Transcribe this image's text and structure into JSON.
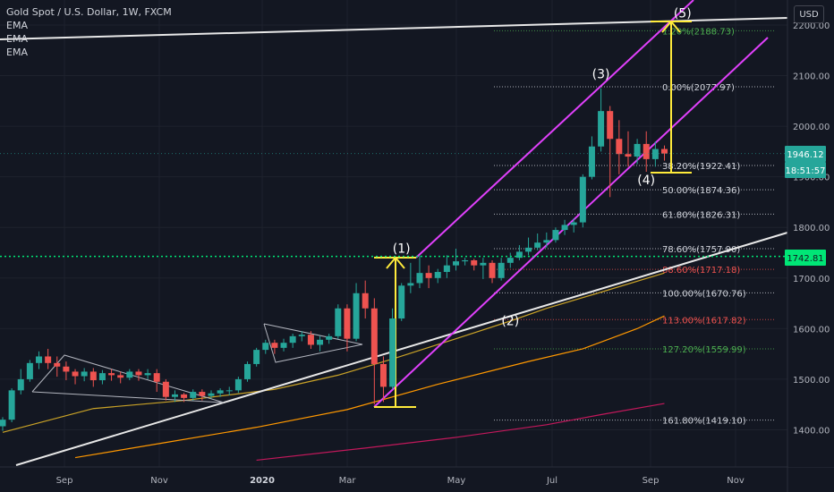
{
  "legend": {
    "title": "Gold Spot / U.S. Dollar, 1W, FXCM",
    "ema_labels": [
      "EMA",
      "EMA",
      "EMA"
    ]
  },
  "currency_button": "USD",
  "price_axis": {
    "ticks": [
      "2200.00",
      "2100.00",
      "2000.00",
      "1800.00",
      "1700.00",
      "1600.00",
      "1500.00",
      "1400.00"
    ],
    "tick_values": [
      2200,
      2100,
      2000,
      1800,
      1700,
      1600,
      1500,
      1400
    ],
    "current_price_label": "1946.12",
    "countdown_label": "18:51:57",
    "line_price_label": "1742.81",
    "partial_tick": "1900.00"
  },
  "time_axis": {
    "labels": [
      "Sep",
      "Nov",
      "2020",
      "Mar",
      "May",
      "Jul",
      "Sep",
      "Nov"
    ]
  },
  "chart_data": {
    "type": "candlestick",
    "title": "Gold Spot / U.S. Dollar, 1W, FXCM",
    "ylim": [
      1340,
      2230
    ],
    "y_ticks": [
      1400,
      1500,
      1600,
      1700,
      1800,
      1900,
      2000,
      2100,
      2200
    ],
    "colors": {
      "up": "#26a69a",
      "down": "#ef5350",
      "background": "#131722",
      "grid": "#2a2e39"
    },
    "candles": [
      [
        1407,
        1420,
        1398,
        1425
      ],
      [
        1420,
        1478,
        1415,
        1482
      ],
      [
        1478,
        1500,
        1470,
        1520
      ],
      [
        1500,
        1532,
        1495,
        1538
      ],
      [
        1532,
        1545,
        1520,
        1555
      ],
      [
        1545,
        1532,
        1520,
        1560
      ],
      [
        1532,
        1525,
        1505,
        1545
      ],
      [
        1525,
        1515,
        1498,
        1535
      ],
      [
        1515,
        1506,
        1490,
        1520
      ],
      [
        1506,
        1515,
        1496,
        1522
      ],
      [
        1515,
        1498,
        1485,
        1522
      ],
      [
        1498,
        1512,
        1490,
        1518
      ],
      [
        1512,
        1508,
        1497,
        1520
      ],
      [
        1508,
        1503,
        1492,
        1515
      ],
      [
        1503,
        1515,
        1498,
        1520
      ],
      [
        1515,
        1508,
        1497,
        1520
      ],
      [
        1508,
        1512,
        1500,
        1520
      ],
      [
        1512,
        1495,
        1475,
        1520
      ],
      [
        1495,
        1465,
        1458,
        1500
      ],
      [
        1465,
        1470,
        1455,
        1478
      ],
      [
        1470,
        1463,
        1455,
        1473
      ],
      [
        1463,
        1475,
        1458,
        1480
      ],
      [
        1475,
        1467,
        1458,
        1480
      ],
      [
        1467,
        1472,
        1462,
        1478
      ],
      [
        1472,
        1478,
        1465,
        1482
      ],
      [
        1478,
        1478,
        1468,
        1485
      ],
      [
        1478,
        1500,
        1473,
        1505
      ],
      [
        1500,
        1530,
        1495,
        1535
      ],
      [
        1530,
        1558,
        1525,
        1562
      ],
      [
        1558,
        1572,
        1550,
        1578
      ],
      [
        1572,
        1562,
        1550,
        1578
      ],
      [
        1562,
        1572,
        1555,
        1580
      ],
      [
        1572,
        1585,
        1562,
        1590
      ],
      [
        1585,
        1588,
        1575,
        1595
      ],
      [
        1588,
        1568,
        1560,
        1595
      ],
      [
        1568,
        1578,
        1555,
        1585
      ],
      [
        1578,
        1585,
        1570,
        1590
      ],
      [
        1585,
        1640,
        1580,
        1648
      ],
      [
        1640,
        1580,
        1555,
        1648
      ],
      [
        1580,
        1670,
        1575,
        1690
      ],
      [
        1670,
        1640,
        1620,
        1695
      ],
      [
        1640,
        1530,
        1450,
        1660
      ],
      [
        1530,
        1485,
        1455,
        1545
      ],
      [
        1485,
        1620,
        1480,
        1640
      ],
      [
        1620,
        1685,
        1615,
        1690
      ],
      [
        1685,
        1690,
        1670,
        1730
      ],
      [
        1690,
        1710,
        1680,
        1745
      ],
      [
        1710,
        1700,
        1680,
        1725
      ],
      [
        1700,
        1712,
        1690,
        1718
      ],
      [
        1712,
        1725,
        1700,
        1745
      ],
      [
        1725,
        1733,
        1715,
        1758
      ],
      [
        1733,
        1735,
        1725,
        1740
      ],
      [
        1735,
        1725,
        1715,
        1738
      ],
      [
        1725,
        1730,
        1698,
        1740
      ],
      [
        1730,
        1700,
        1690,
        1735
      ],
      [
        1700,
        1730,
        1695,
        1740
      ],
      [
        1730,
        1740,
        1720,
        1750
      ],
      [
        1740,
        1752,
        1735,
        1765
      ],
      [
        1752,
        1760,
        1745,
        1780
      ],
      [
        1760,
        1770,
        1755,
        1788
      ],
      [
        1770,
        1775,
        1760,
        1790
      ],
      [
        1775,
        1795,
        1770,
        1800
      ],
      [
        1795,
        1805,
        1785,
        1815
      ],
      [
        1805,
        1810,
        1790,
        1818
      ],
      [
        1810,
        1900,
        1800,
        1905
      ],
      [
        1900,
        1960,
        1895,
        1980
      ],
      [
        1960,
        2030,
        1950,
        2075
      ],
      [
        2030,
        1975,
        1860,
        2040
      ],
      [
        1975,
        1945,
        1905,
        2012
      ],
      [
        1945,
        1940,
        1920,
        1990
      ],
      [
        1940,
        1965,
        1925,
        1975
      ],
      [
        1965,
        1935,
        1910,
        1990
      ],
      [
        1935,
        1955,
        1920,
        1970
      ],
      [
        1955,
        1946,
        1932,
        1962
      ]
    ],
    "ema_series": [
      {
        "color": "#c9a227",
        "points": [
          [
            0,
            1395
          ],
          [
            10,
            1442
          ],
          [
            20,
            1458
          ],
          [
            30,
            1480
          ],
          [
            37,
            1508
          ],
          [
            43,
            1540
          ],
          [
            50,
            1580
          ],
          [
            56,
            1615
          ],
          [
            60,
            1640
          ],
          [
            66,
            1672
          ],
          [
            73,
            1710
          ]
        ]
      },
      {
        "color": "#ff9800",
        "points": [
          [
            8,
            1345
          ],
          [
            18,
            1375
          ],
          [
            28,
            1405
          ],
          [
            38,
            1440
          ],
          [
            48,
            1490
          ],
          [
            58,
            1535
          ],
          [
            64,
            1560
          ],
          [
            70,
            1600
          ],
          [
            73,
            1625
          ]
        ]
      },
      {
        "color": "#c2185b",
        "points": [
          [
            28,
            1340
          ],
          [
            40,
            1364
          ],
          [
            50,
            1385
          ],
          [
            60,
            1410
          ],
          [
            66,
            1430
          ],
          [
            73,
            1452
          ]
        ]
      }
    ],
    "fibonacci_levels": [
      {
        "label": "1.20%(2188.73)",
        "value": 2188.73,
        "color": "#4caf50"
      },
      {
        "label": "0.00%(2077.97)",
        "value": 2077.97,
        "color": "#d1d4dc"
      },
      {
        "label": "38.20%(1922.41)",
        "value": 1922.41,
        "color": "#d1d4dc"
      },
      {
        "label": "50.00%(1874.36)",
        "value": 1874.36,
        "color": "#d1d4dc"
      },
      {
        "label": "61.80%(1826.31)",
        "value": 1826.31,
        "color": "#d1d4dc"
      },
      {
        "label": "78.60%(1757.90)",
        "value": 1757.9,
        "color": "#d1d4dc"
      },
      {
        "label": "88.60%(1717.18)",
        "value": 1717.18,
        "color": "#ef5350"
      },
      {
        "label": "100.00%(1670.76)",
        "value": 1670.76,
        "color": "#d1d4dc"
      },
      {
        "label": "113.00%(1617.82)",
        "value": 1617.82,
        "color": "#ef5350"
      },
      {
        "label": "127.20%(1559.99)",
        "value": 1559.99,
        "color": "#4caf50"
      },
      {
        "label": "161.80%(1419.10)",
        "value": 1419.1,
        "color": "#d1d4dc"
      }
    ],
    "wave_labels": [
      {
        "label": "(1)",
        "bar": 44,
        "value": 1750
      },
      {
        "label": "(2)",
        "bar": 56,
        "value": 1607
      },
      {
        "label": "(3)",
        "bar": 66,
        "value": 2095
      },
      {
        "label": "(4)",
        "bar": 71,
        "value": 1885
      },
      {
        "label": "(5)",
        "bar": 75,
        "value": 2215
      }
    ],
    "horizontal_line_value": 1742.81,
    "current_price": 1946.12
  }
}
